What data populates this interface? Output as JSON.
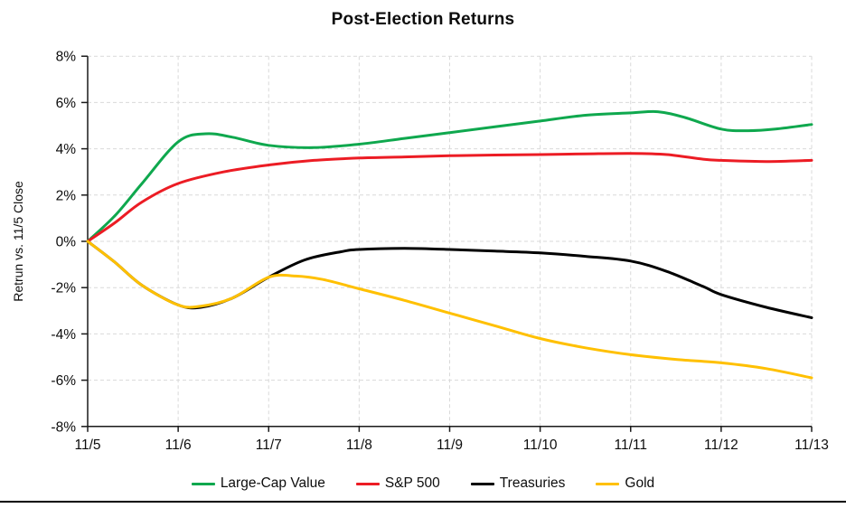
{
  "title": "Post-Election Returns",
  "colors": {
    "large_cap_value": "#0FA84E",
    "sp500": "#EC1C24",
    "treasuries": "#000000",
    "gold": "#FFC000",
    "gridline": "#D9D9D9",
    "axis": "#1a1a1a",
    "text": "#0d0d0d"
  },
  "chart_data": {
    "type": "line",
    "title": "Post-Election Returns",
    "xlabel": "",
    "ylabel": "Retrun vs. 11/5 Close",
    "categories": [
      "11/5",
      "11/6",
      "11/7",
      "11/8",
      "11/9",
      "11/10",
      "11/11",
      "11/12",
      "11/13"
    ],
    "ylim": [
      -8,
      8
    ],
    "y_tick_step": 2,
    "y_tick_labels": [
      "8%",
      "6%",
      "4%",
      "2%",
      "0%",
      "-2%",
      "-4%",
      "-6%",
      "-8%"
    ],
    "grid": true,
    "legend_position": "bottom",
    "series": [
      {
        "name": "Large-Cap Value",
        "color": "#0FA84E",
        "values": [
          0,
          4.3,
          4.15,
          4.2,
          4.7,
          5.2,
          5.55,
          4.85,
          5.05
        ],
        "shape_points": [
          [
            0,
            0
          ],
          [
            0.3,
            1.1
          ],
          [
            0.6,
            2.5
          ],
          [
            1,
            4.3
          ],
          [
            1.3,
            4.65
          ],
          [
            1.6,
            4.5
          ],
          [
            2,
            4.15
          ],
          [
            2.5,
            4.05
          ],
          [
            3,
            4.2
          ],
          [
            3.5,
            4.45
          ],
          [
            4,
            4.7
          ],
          [
            4.5,
            4.95
          ],
          [
            5,
            5.2
          ],
          [
            5.5,
            5.45
          ],
          [
            6,
            5.55
          ],
          [
            6.3,
            5.6
          ],
          [
            6.6,
            5.35
          ],
          [
            7,
            4.85
          ],
          [
            7.3,
            4.78
          ],
          [
            7.6,
            4.85
          ],
          [
            8,
            5.05
          ]
        ]
      },
      {
        "name": "S&P 500",
        "color": "#EC1C24",
        "values": [
          0,
          2.5,
          3.3,
          3.6,
          3.7,
          3.75,
          3.8,
          3.5,
          3.5
        ],
        "shape_points": [
          [
            0,
            0
          ],
          [
            0.3,
            0.8
          ],
          [
            0.6,
            1.7
          ],
          [
            1,
            2.5
          ],
          [
            1.5,
            3.0
          ],
          [
            2,
            3.3
          ],
          [
            2.5,
            3.5
          ],
          [
            3,
            3.6
          ],
          [
            3.5,
            3.65
          ],
          [
            4,
            3.7
          ],
          [
            4.5,
            3.73
          ],
          [
            5,
            3.75
          ],
          [
            5.5,
            3.78
          ],
          [
            6,
            3.8
          ],
          [
            6.4,
            3.75
          ],
          [
            6.8,
            3.55
          ],
          [
            7,
            3.5
          ],
          [
            7.5,
            3.45
          ],
          [
            8,
            3.5
          ]
        ]
      },
      {
        "name": "Treasuries",
        "color": "#000000",
        "values": [
          0,
          -2.75,
          -1.55,
          -0.35,
          -0.35,
          -0.5,
          -0.85,
          -2.3,
          -3.3
        ],
        "shape_points": [
          [
            0,
            0
          ],
          [
            0.3,
            -0.9
          ],
          [
            0.6,
            -1.9
          ],
          [
            1,
            -2.75
          ],
          [
            1.25,
            -2.85
          ],
          [
            1.6,
            -2.45
          ],
          [
            2,
            -1.55
          ],
          [
            2.4,
            -0.8
          ],
          [
            2.8,
            -0.45
          ],
          [
            3,
            -0.35
          ],
          [
            3.5,
            -0.3
          ],
          [
            4,
            -0.35
          ],
          [
            4.5,
            -0.42
          ],
          [
            5,
            -0.5
          ],
          [
            5.5,
            -0.65
          ],
          [
            6,
            -0.85
          ],
          [
            6.4,
            -1.3
          ],
          [
            6.8,
            -1.95
          ],
          [
            7,
            -2.3
          ],
          [
            7.5,
            -2.85
          ],
          [
            8,
            -3.3
          ]
        ]
      },
      {
        "name": "Gold",
        "color": "#FFC000",
        "values": [
          0,
          -2.75,
          -1.55,
          -2.05,
          -3.1,
          -4.2,
          -4.9,
          -5.25,
          -5.9
        ],
        "shape_points": [
          [
            0,
            0
          ],
          [
            0.3,
            -0.9
          ],
          [
            0.6,
            -1.9
          ],
          [
            1,
            -2.75
          ],
          [
            1.25,
            -2.8
          ],
          [
            1.6,
            -2.45
          ],
          [
            2,
            -1.55
          ],
          [
            2.3,
            -1.5
          ],
          [
            2.6,
            -1.65
          ],
          [
            3,
            -2.05
          ],
          [
            3.5,
            -2.55
          ],
          [
            4,
            -3.1
          ],
          [
            4.5,
            -3.65
          ],
          [
            5,
            -4.2
          ],
          [
            5.5,
            -4.6
          ],
          [
            6,
            -4.9
          ],
          [
            6.5,
            -5.1
          ],
          [
            7,
            -5.25
          ],
          [
            7.5,
            -5.5
          ],
          [
            8,
            -5.9
          ]
        ]
      }
    ]
  }
}
